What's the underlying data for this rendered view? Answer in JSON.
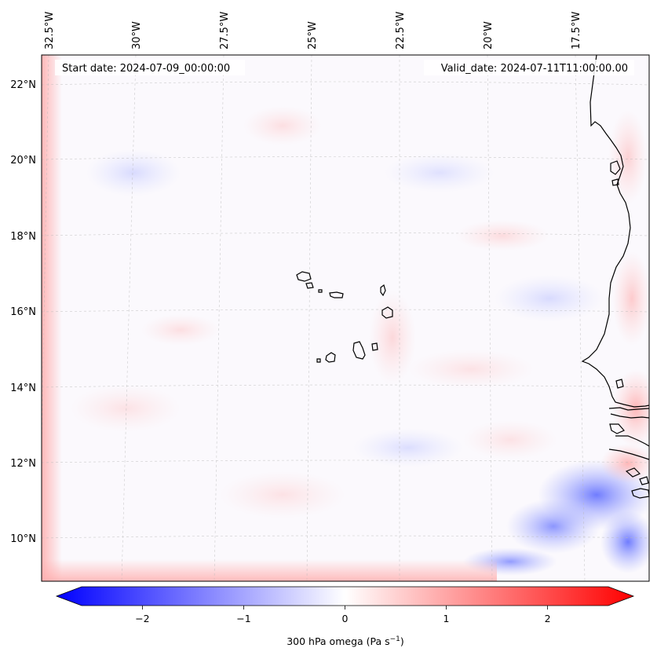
{
  "map": {
    "start_date": "Start date: 2024-07-09_00:00:00",
    "valid_date": "Valid_date: 2024-07-11T11:00:00.00",
    "lon_labels": [
      "32.5°W",
      "30°W",
      "27.5°W",
      "25°W",
      "22.5°W",
      "20°W",
      "17.5°W"
    ],
    "lat_labels": [
      "22°N",
      "20°N",
      "18°N",
      "16°N",
      "14°N",
      "12°N",
      "10°N"
    ],
    "region": "Cape Verde Islands and West African coast",
    "field": "300 hPa omega"
  },
  "colorbar": {
    "ticks": [
      "−2",
      "−1",
      "0",
      "1",
      "2"
    ],
    "tick_values": [
      -2,
      -1,
      0,
      1,
      2
    ],
    "range": [
      -2.6,
      2.6
    ],
    "label": "300 hPa omega (Pa s",
    "label_sup": "−1",
    "label_end": ")",
    "colors": {
      "low": "#0000ff",
      "mid": "#ffffff",
      "high": "#ff0000"
    }
  }
}
